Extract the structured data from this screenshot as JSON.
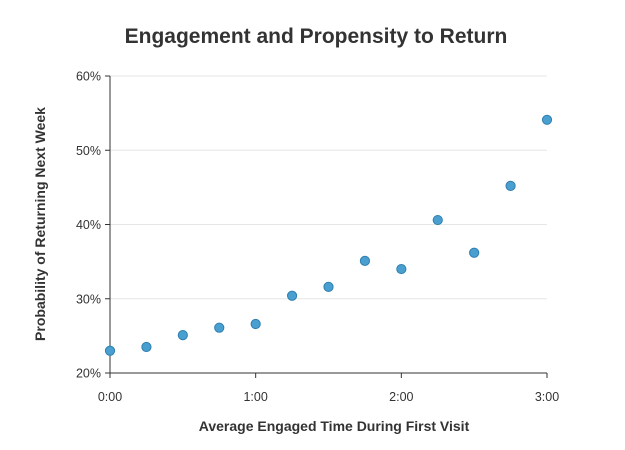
{
  "chart_data": {
    "type": "scatter",
    "title": "Engagement and Propensity to Return",
    "xlabel": "Average Engaged Time During First Visit",
    "ylabel": "Probability of Returning Next Week",
    "xlim": [
      "0:00",
      "3:00"
    ],
    "ylim": [
      20,
      60
    ],
    "xticks": [
      "0:00",
      "1:00",
      "2:00",
      "3:00"
    ],
    "yticks": [
      "20%",
      "30%",
      "40%",
      "50%",
      "60%"
    ],
    "grid": "horizontal",
    "point_color": "#4a9fd1",
    "series": [
      {
        "points": [
          {
            "x": "0:00",
            "y": 23.0
          },
          {
            "x": "0:15",
            "y": 23.5
          },
          {
            "x": "0:30",
            "y": 25.1
          },
          {
            "x": "0:45",
            "y": 26.1
          },
          {
            "x": "1:00",
            "y": 26.6
          },
          {
            "x": "1:15",
            "y": 30.4
          },
          {
            "x": "1:30",
            "y": 31.6
          },
          {
            "x": "1:45",
            "y": 35.1
          },
          {
            "x": "2:00",
            "y": 34.0
          },
          {
            "x": "2:15",
            "y": 40.6
          },
          {
            "x": "2:30",
            "y": 36.2
          },
          {
            "x": "2:45",
            "y": 45.2
          },
          {
            "x": "3:00",
            "y": 54.1
          }
        ]
      }
    ]
  }
}
